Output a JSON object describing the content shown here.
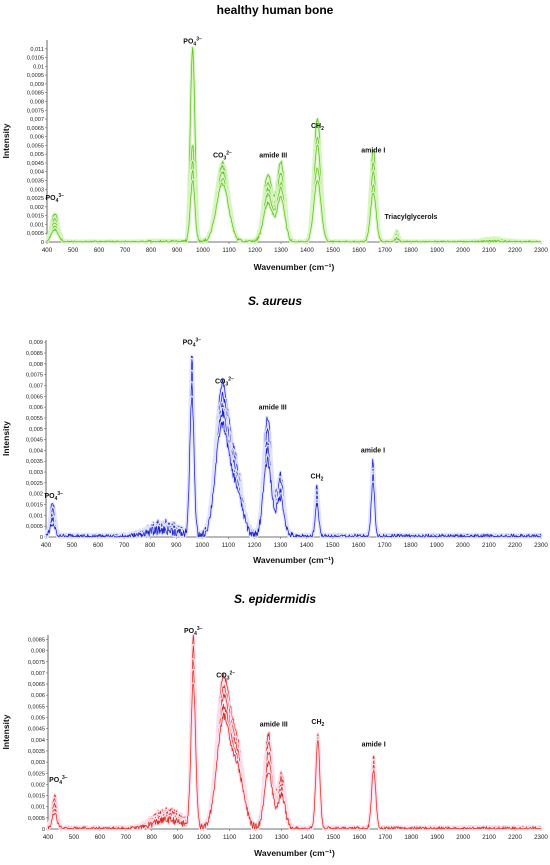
{
  "chart_data": [
    {
      "type": "line",
      "title": "healthy human bone",
      "title_italic": false,
      "xlabel": "Wavenumber (cm⁻¹)",
      "ylabel": "Intensity",
      "xlim": [
        400,
        2300
      ],
      "ylim": [
        0,
        0.0115
      ],
      "x_ticks": [
        400,
        500,
        600,
        700,
        800,
        900,
        1000,
        1100,
        1200,
        1300,
        1400,
        1500,
        1600,
        1700,
        1800,
        1900,
        2000,
        2100,
        2200,
        2300
      ],
      "y_ticks": [
        "0",
        "0,0005",
        "0,001",
        "0,0015",
        "0,002",
        "0,0025",
        "0,003",
        "0,0035",
        "0,004",
        "0,0045",
        "0,005",
        "0,0055",
        "0,006",
        "0,0065",
        "0,007",
        "0,0075",
        "0,008",
        "0,0085",
        "0,009",
        "0,0095",
        "0,01",
        "0,0105",
        "0,011"
      ],
      "y_tick_values": [
        0,
        0.0005,
        0.001,
        0.0015,
        0.002,
        0.0025,
        0.003,
        0.0035,
        0.004,
        0.0045,
        0.005,
        0.0055,
        0.006,
        0.0065,
        0.007,
        0.0075,
        0.008,
        0.0085,
        0.009,
        0.0095,
        0.01,
        0.0105,
        0.011
      ],
      "line_color": "#5fc21f",
      "glow_color": "#d8f5c2",
      "noise": 0.00012,
      "peaks": [
        {
          "center": 430,
          "width": 14,
          "heights": [
            0.0016,
            0.0013,
            0.0011,
            0.0009,
            0.0007
          ]
        },
        {
          "center": 960,
          "width": 9,
          "heights": [
            0.011,
            0.0055,
            0.0045,
            0.004,
            0.0035
          ]
        },
        {
          "center": 1075,
          "width": 24,
          "heights": [
            0.0045,
            0.0043,
            0.004,
            0.0036,
            0.0033
          ]
        },
        {
          "center": 1250,
          "width": 18,
          "heights": [
            0.0038,
            0.0033,
            0.003,
            0.0027,
            0.0022
          ]
        },
        {
          "center": 1300,
          "width": 15,
          "heights": [
            0.0045,
            0.0038,
            0.0033,
            0.003,
            0.0025
          ]
        },
        {
          "center": 1440,
          "width": 14,
          "heights": [
            0.007,
            0.006,
            0.0055,
            0.0042,
            0.0035
          ]
        },
        {
          "center": 1655,
          "width": 11,
          "heights": [
            0.0052,
            0.0045,
            0.004,
            0.0032,
            0.0028
          ]
        },
        {
          "center": 1745,
          "width": 8,
          "heights": [
            0.0006,
            0.0005,
            0.0004,
            0.0003,
            0.0002
          ]
        },
        {
          "center": 2120,
          "width": 40,
          "heights": [
            0.0002,
            0.00015,
            0.0001,
            0.0001,
            5e-05
          ]
        }
      ],
      "annotations": [
        {
          "base": "PO",
          "sub": "4",
          "sup": "3−",
          "x": 430,
          "y": 0.0024
        },
        {
          "base": "PO",
          "sub": "4",
          "sup": "3−",
          "x": 960,
          "y": 0.0113
        },
        {
          "base": "CO",
          "sub": "3",
          "sup": "2−",
          "x": 1075,
          "y": 0.0048
        },
        {
          "base": "amide III",
          "sub": "",
          "sup": "",
          "x": 1270,
          "y": 0.0048
        },
        {
          "base": "CH",
          "sub": "2",
          "sup": "",
          "x": 1440,
          "y": 0.0065
        },
        {
          "base": "amide I",
          "sub": "",
          "sup": "",
          "x": 1655,
          "y": 0.0051
        },
        {
          "base": "Triacylglycerols",
          "sub": "",
          "sup": "",
          "x": 1800,
          "y": 0.0013
        }
      ]
    },
    {
      "type": "line",
      "title": "S. aureus",
      "title_italic": true,
      "xlabel": "Wavenumber (cm⁻¹)",
      "ylabel": "Intensity",
      "xlim": [
        400,
        2300
      ],
      "ylim": [
        0,
        0.0091
      ],
      "x_ticks": [
        400,
        500,
        600,
        700,
        800,
        900,
        1000,
        1100,
        1200,
        1300,
        1400,
        1500,
        1600,
        1700,
        1800,
        1900,
        2000,
        2100,
        2200,
        2300
      ],
      "y_ticks": [
        "0",
        "0,0005",
        "0,001",
        "0,0015",
        "0,002",
        "0,0025",
        "0,003",
        "0,0035",
        "0,004",
        "0,0045",
        "0,005",
        "0,0055",
        "0,006",
        "0,0065",
        "0,007",
        "0,0075",
        "0,008",
        "0,0085",
        "0,009"
      ],
      "y_tick_values": [
        0,
        0.0005,
        0.001,
        0.0015,
        0.002,
        0.0025,
        0.003,
        0.0035,
        0.004,
        0.0045,
        0.005,
        0.0055,
        0.006,
        0.0065,
        0.007,
        0.0075,
        0.008,
        0.0085,
        0.009
      ],
      "line_color": "#1a22cc",
      "glow_color": "#e2e4ff",
      "noise": 0.00025,
      "peaks": [
        {
          "center": 425,
          "width": 10,
          "heights": [
            0.0015,
            0.0012,
            0.001,
            0.0008,
            0.0006
          ]
        },
        {
          "center": 850,
          "width": 60,
          "heights": [
            0.0006,
            0.0005,
            0.0004,
            0.0004,
            0.0003
          ]
        },
        {
          "center": 960,
          "width": 8,
          "heights": [
            0.0083,
            0.008,
            0.0075,
            0.007,
            0.0065
          ]
        },
        {
          "center": 1075,
          "width": 25,
          "heights": [
            0.0068,
            0.0062,
            0.0058,
            0.0055,
            0.005
          ]
        },
        {
          "center": 1130,
          "width": 25,
          "heights": [
            0.003,
            0.0028,
            0.0025,
            0.0022,
            0.002
          ]
        },
        {
          "center": 1250,
          "width": 16,
          "heights": [
            0.0055,
            0.0048,
            0.0043,
            0.004,
            0.0035
          ]
        },
        {
          "center": 1300,
          "width": 14,
          "heights": [
            0.0028,
            0.0025,
            0.0022,
            0.002,
            0.0018
          ]
        },
        {
          "center": 1440,
          "width": 7,
          "heights": [
            0.0023,
            0.0021,
            0.0019,
            0.0017,
            0.0015
          ]
        },
        {
          "center": 1655,
          "width": 7,
          "heights": [
            0.0035,
            0.0032,
            0.003,
            0.0028,
            0.0025
          ]
        }
      ],
      "annotations": [
        {
          "base": "PO",
          "sub": "4",
          "sup": "3−",
          "x": 430,
          "y": 0.0018
        },
        {
          "base": "PO",
          "sub": "4",
          "sup": "3−",
          "x": 960,
          "y": 0.0089
        },
        {
          "base": "CO",
          "sub": "3",
          "sup": "2−",
          "x": 1085,
          "y": 0.0071
        },
        {
          "base": "amide III",
          "sub": "",
          "sup": "",
          "x": 1270,
          "y": 0.0059
        },
        {
          "base": "CH",
          "sub": "2",
          "sup": "",
          "x": 1440,
          "y": 0.0027
        },
        {
          "base": "amide I",
          "sub": "",
          "sup": "",
          "x": 1655,
          "y": 0.0039
        }
      ]
    },
    {
      "type": "line",
      "title": "S. epidermidis",
      "title_italic": true,
      "xlabel": "Wavenumber (cm⁻¹)",
      "ylabel": "Intensity",
      "xlim": [
        400,
        2300
      ],
      "ylim": [
        0,
        0.0087
      ],
      "x_ticks": [
        400,
        500,
        600,
        700,
        800,
        900,
        1000,
        1100,
        1200,
        1300,
        1400,
        1500,
        1600,
        1700,
        1800,
        1900,
        2000,
        2100,
        2200,
        2300
      ],
      "y_ticks": [
        "0",
        "0,0005",
        "0,001",
        "0,0015",
        "0,002",
        "0,0025",
        "0,003",
        "0,0035",
        "0,004",
        "0,0045",
        "0,005",
        "0,0055",
        "0,006",
        "0,0065",
        "0,007",
        "0,0075",
        "0,008",
        "0,0085"
      ],
      "y_tick_values": [
        0,
        0.0005,
        0.001,
        0.0015,
        0.002,
        0.0025,
        0.003,
        0.0035,
        0.004,
        0.0045,
        0.005,
        0.0055,
        0.006,
        0.0065,
        0.007,
        0.0075,
        0.008,
        0.0085
      ],
      "line_color": "#d8311b",
      "glow_color": "#fbe0f0",
      "noise": 0.0002,
      "peaks": [
        {
          "center": 425,
          "width": 10,
          "heights": [
            0.0015,
            0.0013,
            0.0011,
            0.0009,
            0.0007
          ]
        },
        {
          "center": 860,
          "width": 55,
          "heights": [
            0.0008,
            0.0007,
            0.0006,
            0.0005,
            0.0004
          ]
        },
        {
          "center": 960,
          "width": 9,
          "heights": [
            0.0085,
            0.008,
            0.0075,
            0.007,
            0.0065
          ]
        },
        {
          "center": 1075,
          "width": 25,
          "heights": [
            0.0065,
            0.006,
            0.0056,
            0.0052,
            0.0048
          ]
        },
        {
          "center": 1130,
          "width": 25,
          "heights": [
            0.0035,
            0.0032,
            0.003,
            0.0027,
            0.0025
          ]
        },
        {
          "center": 1250,
          "width": 16,
          "heights": [
            0.0042,
            0.0038,
            0.0034,
            0.003,
            0.0026
          ]
        },
        {
          "center": 1300,
          "width": 14,
          "heights": [
            0.0025,
            0.0022,
            0.002,
            0.0018,
            0.0015
          ]
        },
        {
          "center": 1440,
          "width": 8,
          "heights": [
            0.0043,
            0.0042,
            0.0041,
            0.004,
            0.0039
          ]
        },
        {
          "center": 1655,
          "width": 8,
          "heights": [
            0.0033,
            0.0031,
            0.003,
            0.0028,
            0.0026
          ]
        }
      ],
      "annotations": [
        {
          "base": "PO",
          "sub": "4",
          "sup": "3−",
          "x": 440,
          "y": 0.0021
        },
        {
          "base": "PO",
          "sub": "4",
          "sup": "3−",
          "x": 960,
          "y": 0.0088
        },
        {
          "base": "CO",
          "sub": "3",
          "sup": "2−",
          "x": 1085,
          "y": 0.0068
        },
        {
          "base": "amide III",
          "sub": "",
          "sup": "",
          "x": 1270,
          "y": 0.0046
        },
        {
          "base": "CH",
          "sub": "2",
          "sup": "",
          "x": 1440,
          "y": 0.0047
        },
        {
          "base": "amide I",
          "sub": "",
          "sup": "",
          "x": 1655,
          "y": 0.0037
        }
      ]
    }
  ]
}
